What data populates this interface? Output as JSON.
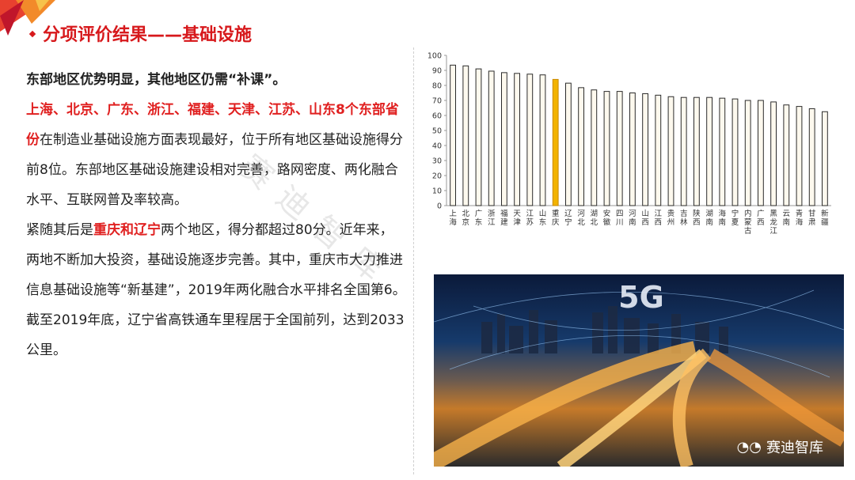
{
  "header": {
    "title": "分项评价结果——基础设施"
  },
  "text": {
    "p1": "东部地区优势明显，其他地区仍需“补课”。",
    "p2_red": "上海、北京、广东、浙江、福建、天津、江苏、山东8个东部省份",
    "p2_rest": "在制造业基础设施方面表现最好，位于所有地区基础设施得分前8位。东部地区基础设施建设相对完善，路网密度、两化融合水平、互联网普及率较高。",
    "p3_pre": "紧随其后是",
    "p3_red": "重庆和辽宁",
    "p3_rest": "两个地区，得分都超过80分。近年来，两地不断加大投资，基础设施逐步完善。其中，重庆市大力推进信息基础设施等“新基建”，2019年两化融合水平排名全国第6。截至2019年底，辽宁省高铁通车里程居于全国前列，达到2033公里。"
  },
  "watermark": "赛迪智库",
  "photo": {
    "label": "5G",
    "brand": "赛迪智库"
  },
  "colors": {
    "accent_red": "#d7191c",
    "bar_fill": "#fdf9ee",
    "bar_stroke": "#2b2b2b",
    "bar_highlight": "#f2b300"
  },
  "chart_data": {
    "type": "bar",
    "ylim": [
      0,
      100
    ],
    "yticks": [
      0,
      10,
      20,
      30,
      40,
      50,
      60,
      70,
      80,
      90,
      100
    ],
    "categories": [
      "上海",
      "北京",
      "广东",
      "浙江",
      "福建",
      "天津",
      "江苏",
      "山东",
      "重庆",
      "辽宁",
      "河北",
      "湖北",
      "安徽",
      "四川",
      "河南",
      "山西",
      "江西",
      "贵州",
      "吉林",
      "陕西",
      "湖南",
      "海南",
      "宁夏",
      "内蒙古",
      "广西",
      "黑龙江",
      "云南",
      "青海",
      "甘肃",
      "新疆"
    ],
    "values": [
      93.5,
      93,
      91,
      89.5,
      88.5,
      88,
      87.5,
      87,
      84,
      81.5,
      78.5,
      77,
      76,
      76,
      75,
      74.5,
      73.5,
      72.5,
      72,
      72,
      72,
      71.5,
      71,
      70,
      70,
      69,
      67,
      66,
      64.5,
      62.5
    ],
    "highlight": [
      "重庆"
    ],
    "grid": false
  }
}
